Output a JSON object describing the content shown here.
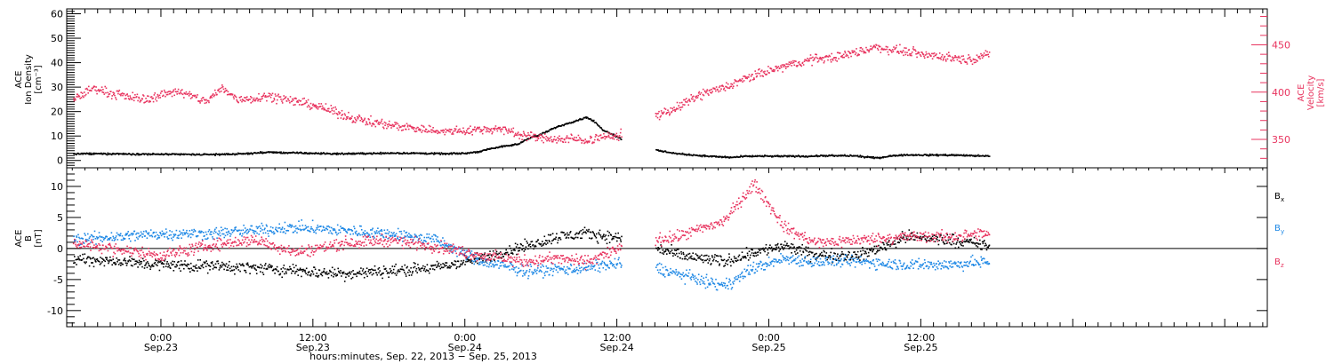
{
  "chart_data": [
    {
      "type": "scatter",
      "panel": "ion-density-velocity",
      "ylabel": [
        "ACE",
        "Ion Density",
        "[cm⁻³]"
      ],
      "ylabel_right": [
        "ACE",
        "Velocity",
        "[km/s]"
      ],
      "ylim": [
        -3,
        62
      ],
      "yticks": [
        0,
        10,
        20,
        30,
        40,
        50,
        60
      ],
      "ylim_right": [
        320,
        488
      ],
      "yticks_right": [
        350,
        400,
        450
      ],
      "right_axis_color": "#e8345f",
      "gaps": [
        [
          3.03,
          3.25
        ]
      ],
      "series": [
        {
          "axis": "left",
          "color": "#000000",
          "points": [
            [
              -0.58,
              3
            ],
            [
              -0.3,
              3
            ],
            [
              0,
              2.8
            ],
            [
              0.3,
              2.7
            ],
            [
              0.5,
              2.9
            ],
            [
              0.7,
              3.6
            ],
            [
              0.85,
              3.4
            ],
            [
              1,
              3.2
            ],
            [
              1.15,
              3
            ],
            [
              1.3,
              3.1
            ],
            [
              1.5,
              3.3
            ],
            [
              1.7,
              3.2
            ],
            [
              1.85,
              3
            ],
            [
              2.0,
              3.2
            ],
            [
              2.1,
              4
            ],
            [
              2.15,
              5
            ],
            [
              2.25,
              6
            ],
            [
              2.35,
              7
            ],
            [
              2.4,
              9
            ],
            [
              2.5,
              11
            ],
            [
              2.6,
              14
            ],
            [
              2.7,
              16
            ],
            [
              2.8,
              18
            ],
            [
              2.85,
              16
            ],
            [
              2.9,
              13
            ],
            [
              3.0,
              10
            ],
            [
              3.05,
              8
            ],
            [
              3.15,
              6
            ],
            [
              3.25,
              4.5
            ],
            [
              3.4,
              3
            ],
            [
              3.6,
              2
            ],
            [
              3.75,
              1.5
            ],
            [
              3.85,
              2
            ],
            [
              3.95,
              2
            ],
            [
              4.02,
              2
            ],
            [
              4.25,
              2
            ],
            [
              4.4,
              2.2
            ],
            [
              4.55,
              2.2
            ],
            [
              4.7,
              1.3
            ],
            [
              4.85,
              2.5
            ],
            [
              5.0,
              2.5
            ],
            [
              5.2,
              2.5
            ],
            [
              5.45,
              2
            ]
          ]
        },
        {
          "axis": "right",
          "color": "#e8345f",
          "points": [
            [
              -0.58,
              393
            ],
            [
              -0.45,
              405
            ],
            [
              -0.3,
              398
            ],
            [
              -0.1,
              393
            ],
            [
              0,
              398
            ],
            [
              0.1,
              402
            ],
            [
              0.2,
              396
            ],
            [
              0.3,
              391
            ],
            [
              0.4,
              405
            ],
            [
              0.5,
              393
            ],
            [
              0.6,
              394
            ],
            [
              0.7,
              397
            ],
            [
              0.85,
              392
            ],
            [
              1,
              387
            ],
            [
              1.1,
              382
            ],
            [
              1.2,
              376
            ],
            [
              1.35,
              370
            ],
            [
              1.5,
              366
            ],
            [
              1.6,
              364
            ],
            [
              1.7,
              362
            ],
            [
              1.8,
              360
            ],
            [
              1.9,
              359
            ],
            [
              2.0,
              360
            ],
            [
              2.1,
              361
            ],
            [
              2.2,
              362
            ],
            [
              2.3,
              359
            ],
            [
              2.4,
              355
            ],
            [
              2.5,
              352
            ],
            [
              2.6,
              351
            ],
            [
              2.7,
              351
            ],
            [
              2.8,
              350
            ],
            [
              2.9,
              353
            ],
            [
              3.0,
              354
            ],
            [
              3.1,
              360
            ],
            [
              3.2,
              372
            ],
            [
              3.3,
              378
            ],
            [
              3.4,
              385
            ],
            [
              3.5,
              394
            ],
            [
              3.6,
              401
            ],
            [
              3.7,
              405
            ],
            [
              3.8,
              412
            ],
            [
              3.9,
              418
            ],
            [
              4.0,
              423
            ],
            [
              4.1,
              428
            ],
            [
              4.2,
              432
            ],
            [
              4.3,
              436
            ],
            [
              4.4,
              437
            ],
            [
              4.5,
              440
            ],
            [
              4.6,
              444
            ],
            [
              4.7,
              448
            ],
            [
              4.85,
              445
            ],
            [
              5.0,
              441
            ],
            [
              5.15,
              438
            ],
            [
              5.3,
              435
            ],
            [
              5.45,
              440
            ]
          ]
        }
      ]
    },
    {
      "type": "scatter",
      "panel": "magnetic-field",
      "ylabel": [
        "ACE",
        "B",
        "[nT]"
      ],
      "ylim": [
        -12.6,
        13
      ],
      "yticks": [
        -10,
        -5,
        0,
        5,
        10
      ],
      "zero_line": true,
      "gaps": [
        [
          3.03,
          3.25
        ]
      ],
      "series": [
        {
          "name": "Bx",
          "color": "#000000",
          "points": [
            [
              -0.58,
              -1.5
            ],
            [
              -0.3,
              -2
            ],
            [
              0,
              -2.5
            ],
            [
              0.3,
              -2.7
            ],
            [
              0.6,
              -3
            ],
            [
              0.9,
              -3.5
            ],
            [
              1.2,
              -4
            ],
            [
              1.5,
              -3.5
            ],
            [
              1.8,
              -3
            ],
            [
              2.1,
              -1.5
            ],
            [
              2.4,
              0.5
            ],
            [
              2.6,
              2
            ],
            [
              2.8,
              2.5
            ],
            [
              3.1,
              1.5
            ],
            [
              3.4,
              -1
            ],
            [
              3.7,
              -2
            ],
            [
              3.9,
              -0.5
            ],
            [
              4.1,
              0.5
            ],
            [
              4.3,
              -1
            ],
            [
              4.6,
              -1
            ],
            [
              4.9,
              2
            ],
            [
              5.2,
              1.5
            ],
            [
              5.45,
              0.5
            ]
          ]
        },
        {
          "name": "By",
          "color": "#1e88e5",
          "points": [
            [
              -0.58,
              1.5
            ],
            [
              -0.3,
              2
            ],
            [
              0,
              2.5
            ],
            [
              0.3,
              2.5
            ],
            [
              0.6,
              3
            ],
            [
              0.9,
              3.5
            ],
            [
              1.2,
              3
            ],
            [
              1.5,
              2.5
            ],
            [
              1.8,
              1.5
            ],
            [
              2.1,
              -2
            ],
            [
              2.4,
              -3.5
            ],
            [
              2.6,
              -3.3
            ],
            [
              2.8,
              -3
            ],
            [
              3.1,
              -2
            ],
            [
              3.4,
              -4
            ],
            [
              3.7,
              -6
            ],
            [
              3.9,
              -3
            ],
            [
              4.1,
              -1.5
            ],
            [
              4.3,
              -2
            ],
            [
              4.6,
              -2
            ],
            [
              4.9,
              -2.5
            ],
            [
              5.2,
              -2.5
            ],
            [
              5.45,
              -2
            ]
          ]
        },
        {
          "name": "Bz",
          "color": "#e8345f",
          "points": [
            [
              -0.58,
              1
            ],
            [
              -0.3,
              0
            ],
            [
              0,
              -1
            ],
            [
              0.3,
              0.5
            ],
            [
              0.6,
              1.5
            ],
            [
              0.9,
              -0.5
            ],
            [
              1.2,
              1
            ],
            [
              1.5,
              1.5
            ],
            [
              1.8,
              0.5
            ],
            [
              2.1,
              -1
            ],
            [
              2.4,
              -2
            ],
            [
              2.6,
              -1.5
            ],
            [
              2.8,
              -2
            ],
            [
              3.1,
              1
            ],
            [
              3.4,
              2
            ],
            [
              3.7,
              4.5
            ],
            [
              3.9,
              10.5
            ],
            [
              4.1,
              3.5
            ],
            [
              4.3,
              1
            ],
            [
              4.6,
              1.5
            ],
            [
              4.9,
              2
            ],
            [
              5.2,
              2
            ],
            [
              5.45,
              2.5
            ]
          ]
        }
      ],
      "legend": [
        {
          "label": "B",
          "sub": "x",
          "color": "#000000"
        },
        {
          "label": "B",
          "sub": "y",
          "color": "#1e88e5"
        },
        {
          "label": "B",
          "sub": "z",
          "color": "#e8345f"
        }
      ]
    }
  ],
  "x_axis": {
    "range_days": [
      -0.62,
      7.28
    ],
    "ticks": [
      {
        "pos": 0,
        "time": "0:00",
        "date": "Sep.23"
      },
      {
        "pos": 1,
        "time": "12:00",
        "date": "Sep.23"
      },
      {
        "pos": 2,
        "time": "0:00",
        "date": "Sep.24"
      },
      {
        "pos": 3,
        "time": "12:00",
        "date": "Sep.24"
      },
      {
        "pos": 4,
        "time": "0:00",
        "date": "Sep.25"
      },
      {
        "pos": 5,
        "time": "12:00",
        "date": "Sep.25"
      }
    ],
    "title": "hours:minutes, Sep. 22, 2013 − Sep. 25, 2013"
  },
  "colors": {
    "velocity": "#e8345f",
    "bx": "#000000",
    "by": "#1e88e5",
    "bz": "#e8345f"
  }
}
